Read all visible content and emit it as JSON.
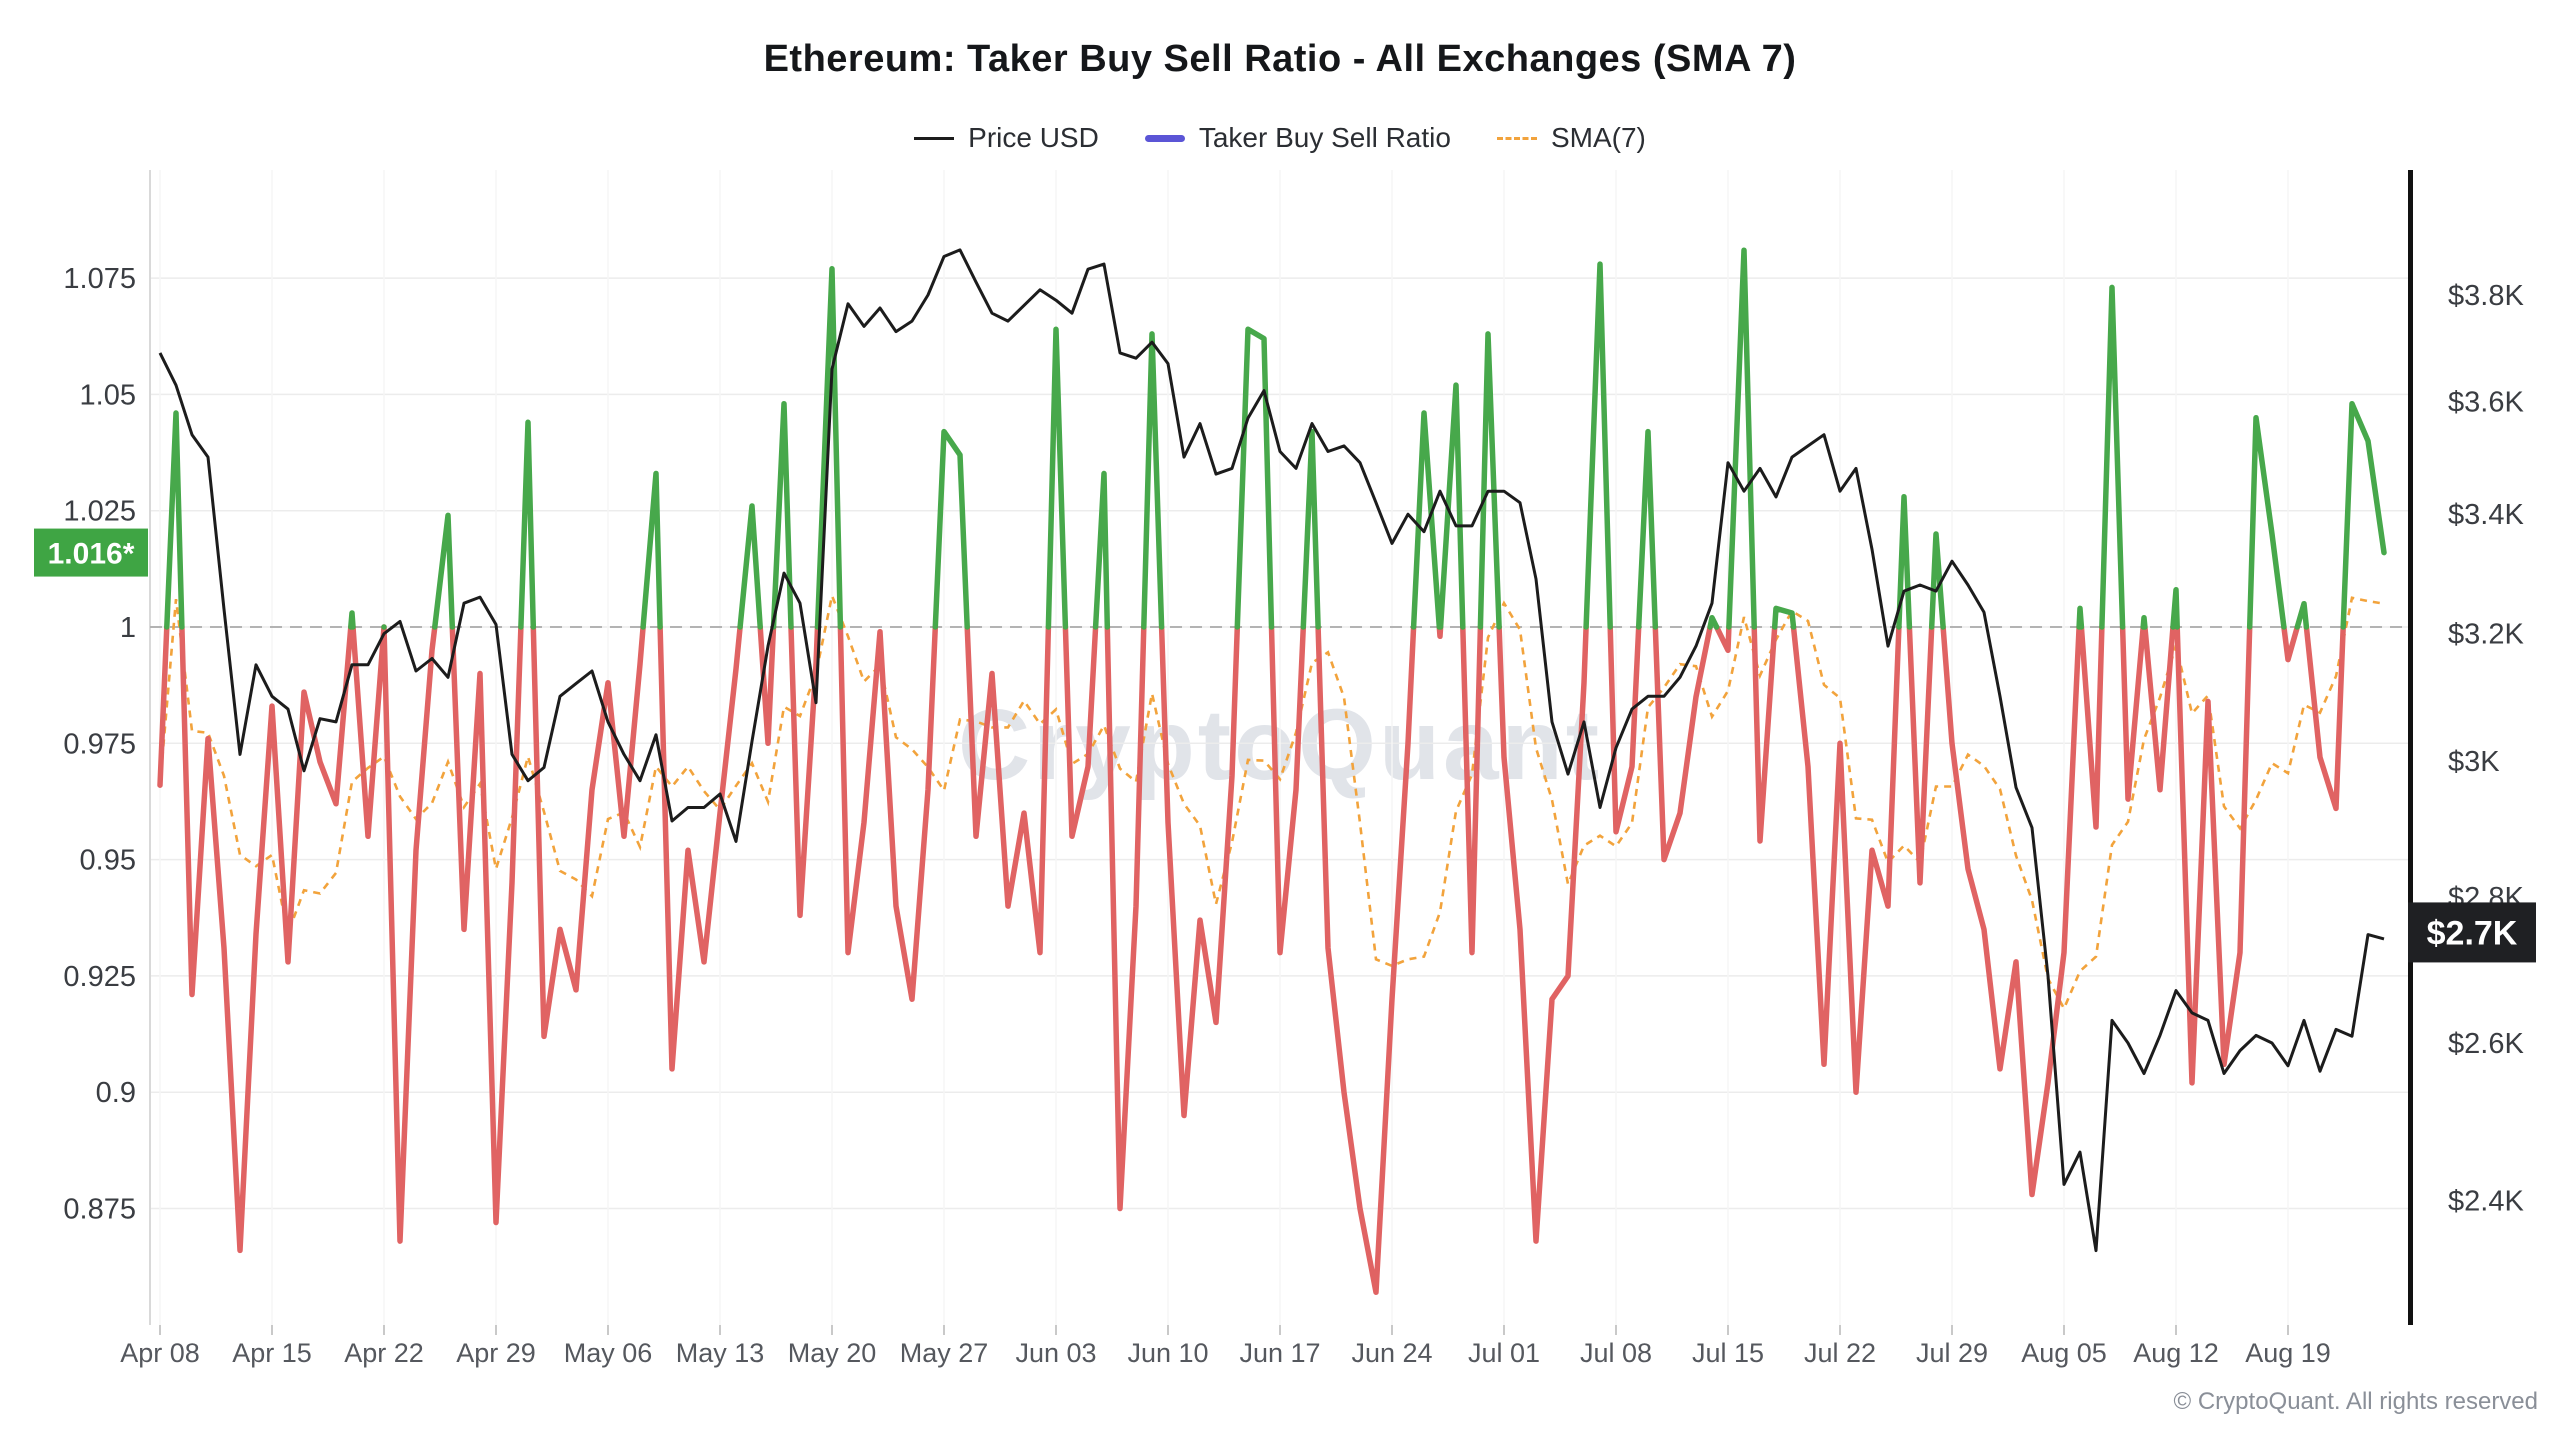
{
  "header": {
    "title": "Ethereum: Taker Buy Sell Ratio - All Exchanges (SMA 7)"
  },
  "legend": {
    "items": [
      {
        "label": "Price USD",
        "color": "#1c1c1c",
        "style": "line"
      },
      {
        "label": "Taker Buy Sell Ratio",
        "color": "#5b55d6",
        "style": "thick-line"
      },
      {
        "label": "SMA(7)",
        "color": "#f2a33c",
        "style": "dashed"
      }
    ]
  },
  "watermark": "CryptoQuant",
  "copyright": "© CryptoQuant. All rights reserved",
  "badges": {
    "ratio_last": {
      "text": "1.016*",
      "value": 1.016,
      "bg": "#3fa544",
      "fg": "#ffffff"
    },
    "price_last": {
      "text": "$2.7K",
      "value": 2750,
      "bg": "#1f2023",
      "fg": "#ffffff"
    }
  },
  "chart_data": {
    "type": "line",
    "title": "Ethereum: Taker Buy Sell Ratio - All Exchanges (SMA 7)",
    "frequency": "daily",
    "start_date": "Apr 08",
    "end_date": "Aug 25",
    "x_tick_labels": [
      "Apr 08",
      "Apr 15",
      "Apr 22",
      "Apr 29",
      "May 06",
      "May 13",
      "May 20",
      "May 27",
      "Jun 03",
      "Jun 10",
      "Jun 17",
      "Jun 24",
      "Jul 01",
      "Jul 08",
      "Jul 15",
      "Jul 22",
      "Jul 29",
      "Aug 05",
      "Aug 12",
      "Aug 19"
    ],
    "left_axis": {
      "name": "Taker Buy Sell Ratio",
      "scale": "linear",
      "tick_labels": [
        "1.075",
        "1.05",
        "1.025",
        "1",
        "0.975",
        "0.95",
        "0.925",
        "0.9",
        "0.875"
      ],
      "tick_values": [
        1.075,
        1.05,
        1.025,
        1,
        0.975,
        0.95,
        0.925,
        0.9,
        0.875
      ],
      "range": [
        0.85,
        1.098
      ],
      "baseline_dashed_at": 1.0
    },
    "right_axis": {
      "name": "Price USD",
      "scale": "log",
      "tick_labels": [
        "$3.8K",
        "$3.6K",
        "$3.4K",
        "$3.2K",
        "$3K",
        "$2.8K",
        "$2.6K",
        "$2.4K"
      ],
      "tick_values": [
        3800,
        3600,
        3400,
        3200,
        3000,
        2800,
        2600,
        2400
      ],
      "range": [
        2253,
        4049
      ]
    },
    "grid": {
      "horizontal": true,
      "vertical_weekly": true
    },
    "series": [
      {
        "name": "Price USD",
        "axis": "right",
        "color": "#1c1c1c",
        "values": [
          3690,
          3630,
          3540,
          3500,
          3240,
          3010,
          3150,
          3100,
          3080,
          2985,
          3065,
          3060,
          3150,
          3150,
          3200,
          3220,
          3140,
          3160,
          3130,
          3250,
          3260,
          3215,
          3010,
          2970,
          2990,
          3100,
          3120,
          3140,
          3060,
          3010,
          2970,
          3040,
          2910,
          2930,
          2930,
          2950,
          2880,
          3030,
          3180,
          3300,
          3250,
          3090,
          3660,
          3783,
          3740,
          3775,
          3730,
          3750,
          3800,
          3875,
          3888,
          3825,
          3765,
          3750,
          3780,
          3810,
          3790,
          3765,
          3850,
          3860,
          3690,
          3680,
          3710,
          3670,
          3500,
          3560,
          3470,
          3480,
          3570,
          3620,
          3510,
          3480,
          3560,
          3510,
          3520,
          3490,
          3420,
          3350,
          3400,
          3370,
          3440,
          3380,
          3380,
          3440,
          3440,
          3420,
          3290,
          3060,
          2980,
          3060,
          2930,
          3020,
          3080,
          3100,
          3100,
          3130,
          3180,
          3250,
          3490,
          3440,
          3480,
          3430,
          3500,
          3520,
          3540,
          3440,
          3480,
          3340,
          3180,
          3270,
          3280,
          3270,
          3320,
          3280,
          3235,
          3100,
          2960,
          2900,
          2690,
          2420,
          2460,
          2340,
          2630,
          2600,
          2560,
          2610,
          2670,
          2640,
          2630,
          2560,
          2590,
          2610,
          2600,
          2570,
          2630,
          2563,
          2618,
          2609,
          2747,
          2741
        ]
      },
      {
        "name": "Taker Buy Sell Ratio",
        "axis": "left",
        "legend_color": "#5b55d6",
        "color_above_threshold": "#47a84b",
        "color_below_threshold": "#e06363",
        "threshold": 1.0,
        "values": [
          0.966,
          1.046,
          0.921,
          0.976,
          0.931,
          0.866,
          0.934,
          0.983,
          0.928,
          0.986,
          0.971,
          0.962,
          1.003,
          0.955,
          1.0,
          0.868,
          0.952,
          0.995,
          1.024,
          0.935,
          0.99,
          0.872,
          0.945,
          1.044,
          0.912,
          0.935,
          0.922,
          0.965,
          0.988,
          0.955,
          0.992,
          1.033,
          0.905,
          0.952,
          0.928,
          0.96,
          0.991,
          1.026,
          0.975,
          1.048,
          0.938,
          0.992,
          1.077,
          0.93,
          0.958,
          0.999,
          0.94,
          0.92,
          0.965,
          1.042,
          1.037,
          0.955,
          0.99,
          0.94,
          0.96,
          0.93,
          1.064,
          0.955,
          0.97,
          1.033,
          0.875,
          0.94,
          1.063,
          0.958,
          0.895,
          0.937,
          0.915,
          0.968,
          1.064,
          1.062,
          0.93,
          0.965,
          1.042,
          0.931,
          0.9,
          0.875,
          0.857,
          0.92,
          0.975,
          1.046,
          0.998,
          1.052,
          0.93,
          1.063,
          0.972,
          0.935,
          0.868,
          0.92,
          0.925,
          0.988,
          1.078,
          0.956,
          0.97,
          1.042,
          0.95,
          0.96,
          0.985,
          1.002,
          0.995,
          1.081,
          0.954,
          1.004,
          1.003,
          0.97,
          0.906,
          0.975,
          0.9,
          0.952,
          0.94,
          1.028,
          0.945,
          1.02,
          0.975,
          0.948,
          0.935,
          0.905,
          0.928,
          0.878,
          0.902,
          0.93,
          1.004,
          0.957,
          1.073,
          0.963,
          1.002,
          0.965,
          1.008,
          0.902,
          0.984,
          0.906,
          0.93,
          1.045,
          1.02,
          0.993,
          1.005,
          0.972,
          0.961,
          1.048,
          1.04,
          1.016
        ]
      },
      {
        "name": "SMA(7)",
        "axis": "left",
        "color": "#f2a33c",
        "style": "dashed",
        "derived": "trailing 7-day simple moving average of Taker Buy Sell Ratio"
      }
    ]
  }
}
